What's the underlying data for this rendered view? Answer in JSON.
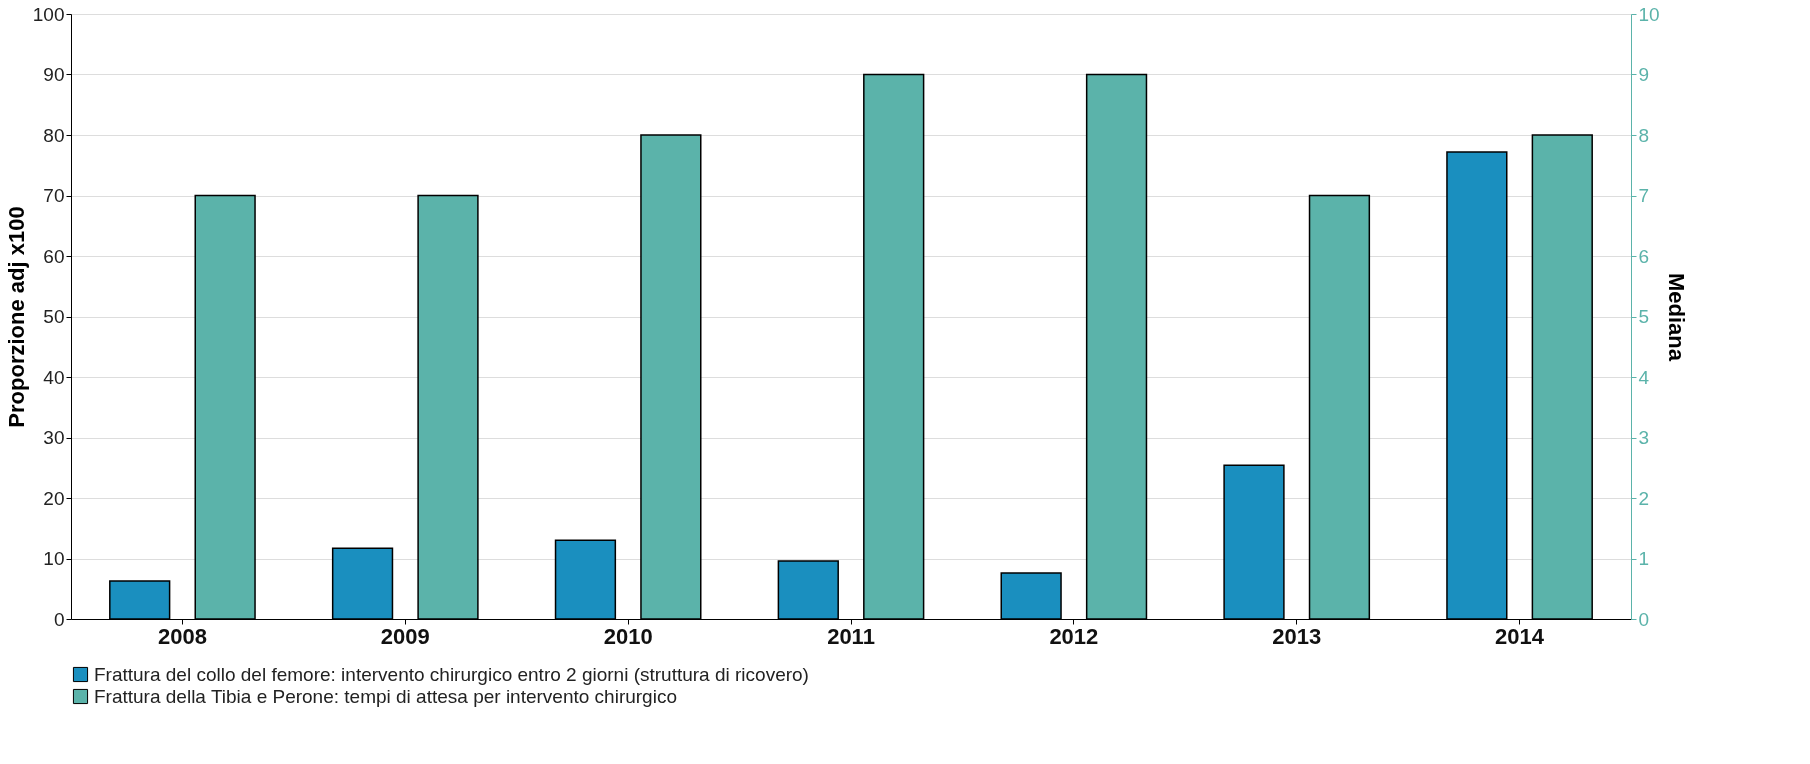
{
  "chart_data": {
    "type": "bar",
    "ylabel": "Proporzione adj x100",
    "y2label": "Mediana",
    "categories": [
      "2008",
      "2009",
      "2010",
      "2011",
      "2012",
      "2013",
      "2014"
    ],
    "series": [
      {
        "name": "Frattura del collo del femore: intervento chirurgico entro 2 giorni (struttura di ricovero)",
        "color": "#1a8fbf",
        "values": [
          6.3,
          11.7,
          13.0,
          9.6,
          7.6,
          25.4,
          77.2
        ]
      },
      {
        "name": "Frattura della Tibia e Perone: tempi di attesa per intervento chirurgico",
        "color": "#5bb3aa",
        "axis": "y2",
        "values": [
          7,
          7,
          8,
          9,
          9,
          7,
          8
        ]
      }
    ],
    "ylim": [
      0,
      100
    ],
    "yticks": [
      0,
      10,
      20,
      30,
      40,
      50,
      60,
      70,
      80,
      90,
      100
    ],
    "y2lim": [
      0,
      10
    ],
    "y2ticks": [
      0,
      1,
      2,
      3,
      4,
      5,
      6,
      7,
      8,
      9,
      10
    ],
    "grid": "y",
    "legend": "bottom"
  }
}
